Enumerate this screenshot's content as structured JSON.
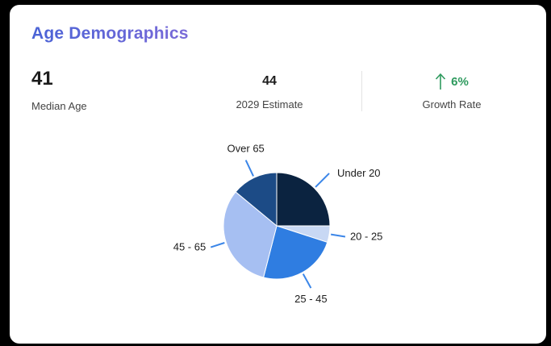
{
  "card": {
    "title": "Age Demographics"
  },
  "metrics": {
    "median": {
      "value": "41",
      "label": "Median Age"
    },
    "estimate": {
      "value": "44",
      "label": "2029 Estimate"
    },
    "growth": {
      "value": "6%",
      "label": "Growth Rate",
      "direction": "up",
      "color": "#2e9a5e"
    }
  },
  "chart_data": {
    "type": "pie",
    "title": "",
    "categories": [
      "Under 20",
      "20 - 25",
      "25 - 45",
      "45 - 65",
      "Over 65"
    ],
    "values": [
      25,
      5,
      24,
      32,
      14
    ],
    "colors": [
      "#0b2340",
      "#c8d8f4",
      "#2f7de1",
      "#a6bff2",
      "#1c4b86"
    ],
    "slice_border": "#ffffff",
    "leader_color": "#3b86e8"
  }
}
